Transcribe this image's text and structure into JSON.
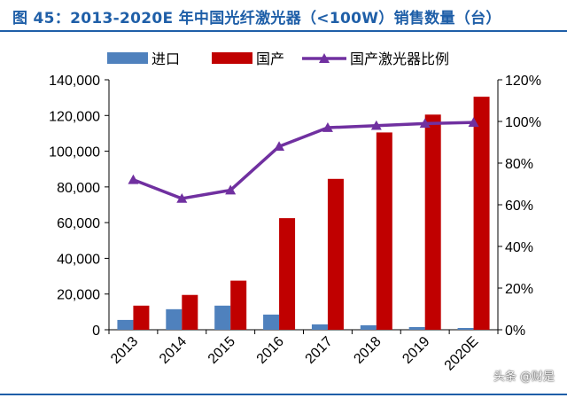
{
  "figure": {
    "title": "图 45：2013-2020E 年中国光纤激光器（<100W）销售数量（台）",
    "watermark": "头条 @财是"
  },
  "chart_data": {
    "type": "bar+line",
    "title": "图 45：2013-2020E 年中国光纤激光器（<100W）销售数量（台）",
    "categories": [
      "2013",
      "2014",
      "2015",
      "2016",
      "2017",
      "2018",
      "2019",
      "2020E"
    ],
    "series": [
      {
        "name": "进口",
        "type": "bar",
        "axis": "left",
        "color": "#4f81bd",
        "values": [
          5500,
          11500,
          13500,
          8500,
          3000,
          2500,
          1500,
          1000
        ]
      },
      {
        "name": "国产",
        "type": "bar",
        "axis": "left",
        "color": "#c00000",
        "values": [
          13500,
          19500,
          27500,
          62500,
          84500,
          110500,
          120500,
          130500
        ]
      },
      {
        "name": "国产激光器比例",
        "type": "line",
        "axis": "right",
        "color": "#7030a0",
        "marker": "triangle",
        "values": [
          72,
          63,
          67,
          88,
          97,
          98,
          99,
          99.5
        ]
      }
    ],
    "left_axis": {
      "ylim": [
        0,
        140000
      ],
      "ticks": [
        0,
        20000,
        40000,
        60000,
        80000,
        100000,
        120000,
        140000
      ],
      "tick_labels": [
        "0",
        "20,000",
        "40,000",
        "60,000",
        "80,000",
        "100,000",
        "120,000",
        "140,000"
      ]
    },
    "right_axis": {
      "ylim": [
        0,
        120
      ],
      "ticks": [
        0,
        20,
        40,
        60,
        80,
        100,
        120
      ],
      "tick_labels": [
        "0%",
        "20%",
        "40%",
        "60%",
        "80%",
        "100%",
        "120%"
      ]
    },
    "legend_placement": "top",
    "grid": false
  }
}
